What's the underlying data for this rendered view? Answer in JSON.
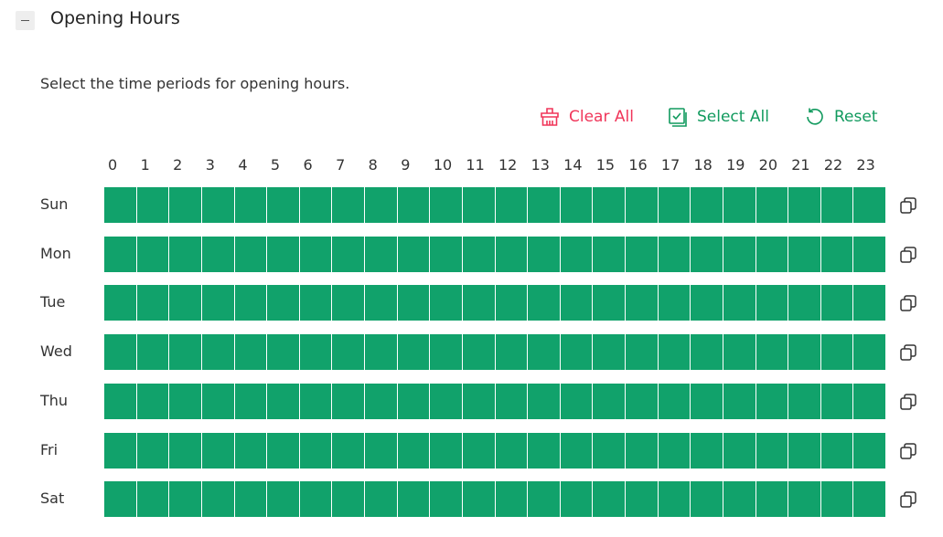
{
  "header": {
    "title": "Opening Hours"
  },
  "description": "Select the time periods for opening hours.",
  "actions": [
    {
      "label": "Clear All"
    },
    {
      "label": "Select All"
    },
    {
      "label": "Reset"
    }
  ],
  "hours": [
    0,
    1,
    2,
    3,
    4,
    5,
    6,
    7,
    8,
    9,
    10,
    11,
    12,
    13,
    14,
    15,
    16,
    17,
    18,
    19,
    20,
    21,
    22,
    23
  ],
  "days": [
    "Sun",
    "Mon",
    "Tue",
    "Wed",
    "Thu",
    "Fri",
    "Sat"
  ]
}
